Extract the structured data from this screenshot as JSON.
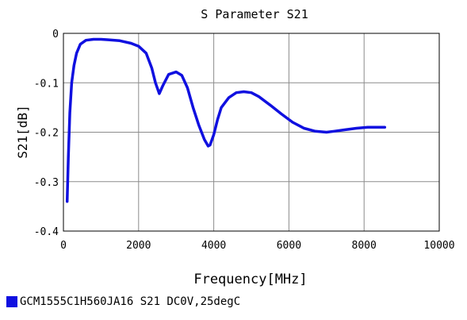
{
  "chart_data": {
    "type": "line",
    "title": "S Parameter S21",
    "xlabel": "Frequency[MHz]",
    "ylabel": "S21[dB]",
    "xlim": [
      0,
      10000
    ],
    "ylim": [
      -0.4,
      0
    ],
    "xticks": [
      "0",
      "2000",
      "4000",
      "6000",
      "8000",
      "10000"
    ],
    "yticks": [
      "0",
      "-0.1",
      "-0.2",
      "-0.3",
      "-0.4"
    ],
    "grid": true,
    "legend_position": "bottom-left",
    "series": [
      {
        "name": "GCM1555C1H560JA16 S21 DC0V,25degC",
        "color": "#1010e0",
        "x": [
          100,
          130,
          170,
          220,
          280,
          350,
          450,
          600,
          800,
          1000,
          1200,
          1500,
          1800,
          2000,
          2200,
          2350,
          2450,
          2550,
          2650,
          2800,
          3000,
          3150,
          3300,
          3450,
          3600,
          3750,
          3850,
          3900,
          4000,
          4100,
          4200,
          4400,
          4600,
          4800,
          5000,
          5200,
          5500,
          5800,
          6100,
          6400,
          6700,
          7000,
          7200,
          7500,
          7800,
          8100,
          8400,
          8550
        ],
        "y": [
          -0.34,
          -0.25,
          -0.16,
          -0.1,
          -0.065,
          -0.04,
          -0.022,
          -0.014,
          -0.012,
          -0.012,
          -0.013,
          -0.015,
          -0.02,
          -0.026,
          -0.04,
          -0.07,
          -0.1,
          -0.122,
          -0.105,
          -0.083,
          -0.078,
          -0.085,
          -0.11,
          -0.15,
          -0.185,
          -0.215,
          -0.228,
          -0.226,
          -0.205,
          -0.175,
          -0.15,
          -0.13,
          -0.12,
          -0.118,
          -0.12,
          -0.128,
          -0.145,
          -0.163,
          -0.18,
          -0.192,
          -0.198,
          -0.2,
          -0.198,
          -0.195,
          -0.192,
          -0.19,
          -0.19,
          -0.19
        ]
      }
    ]
  }
}
